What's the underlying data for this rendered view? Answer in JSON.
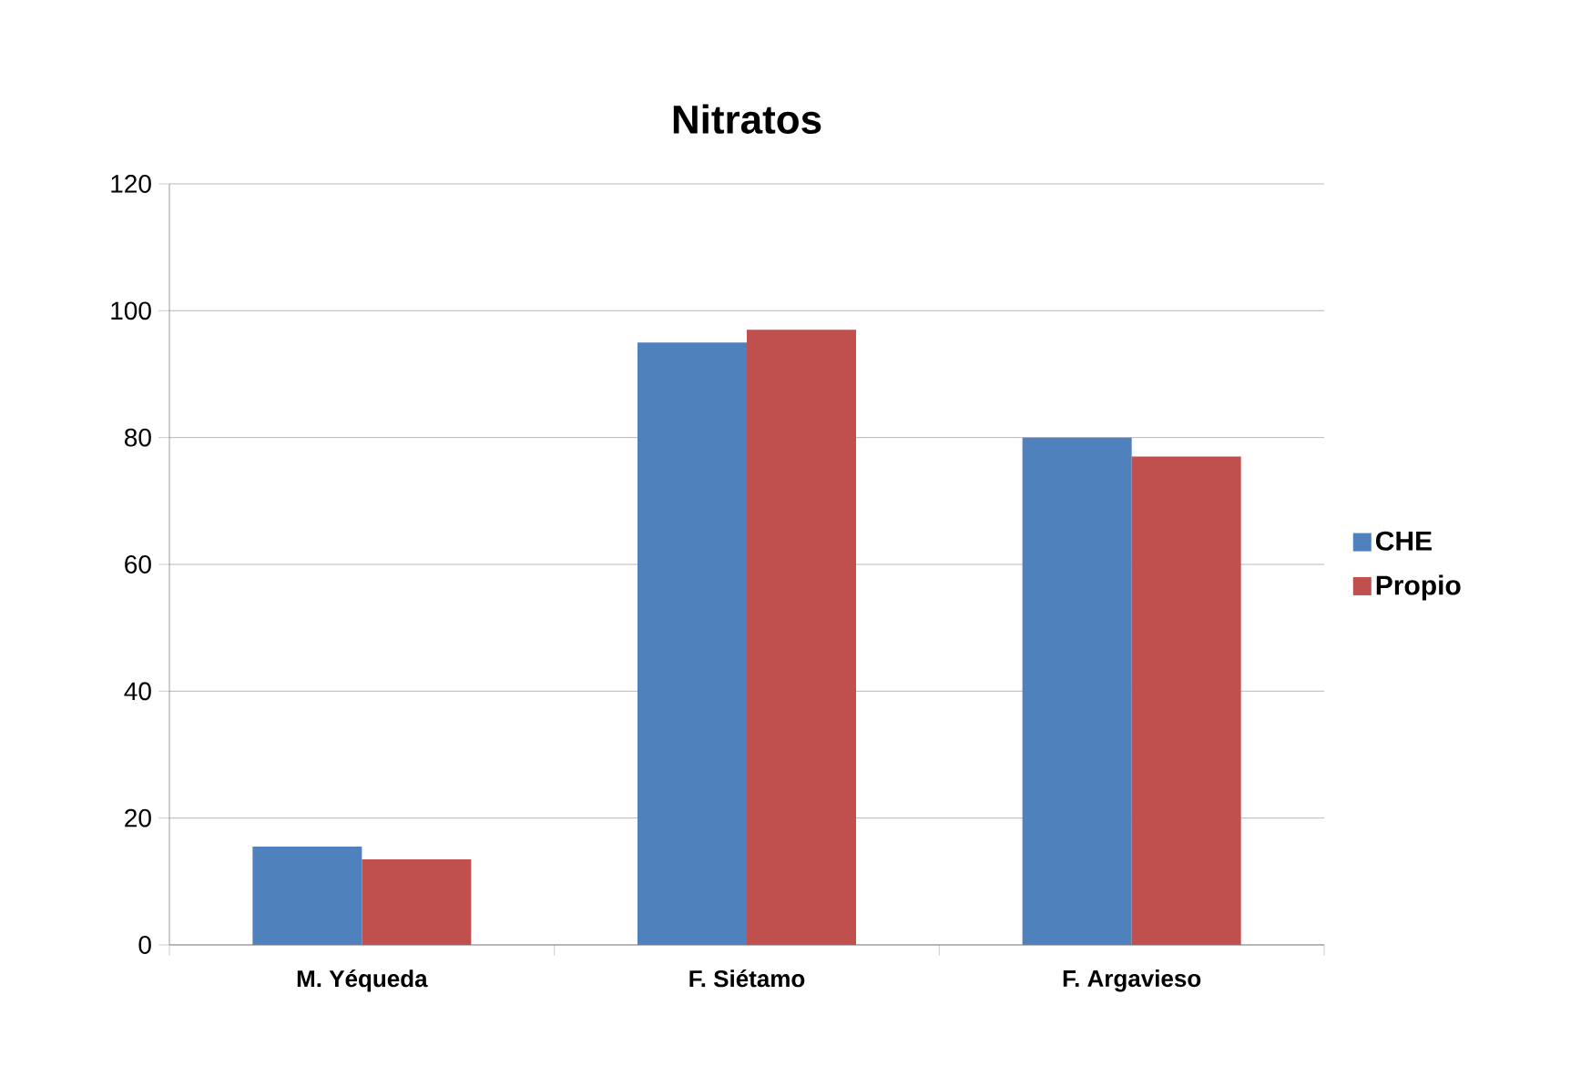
{
  "chart_data": {
    "type": "bar",
    "title": "Nitratos",
    "categories": [
      "M. Yéqueda",
      "F. Siétamo",
      "F. Argavieso"
    ],
    "series": [
      {
        "name": "CHE",
        "color": "#4f81bd",
        "values": [
          15.5,
          95,
          80
        ]
      },
      {
        "name": "Propio",
        "color": "#c0504d",
        "values": [
          13.5,
          97,
          77
        ]
      }
    ],
    "ylim": [
      0,
      120
    ],
    "yticks": [
      0,
      20,
      40,
      60,
      80,
      100,
      120
    ],
    "grid": "y",
    "legend": "right"
  }
}
